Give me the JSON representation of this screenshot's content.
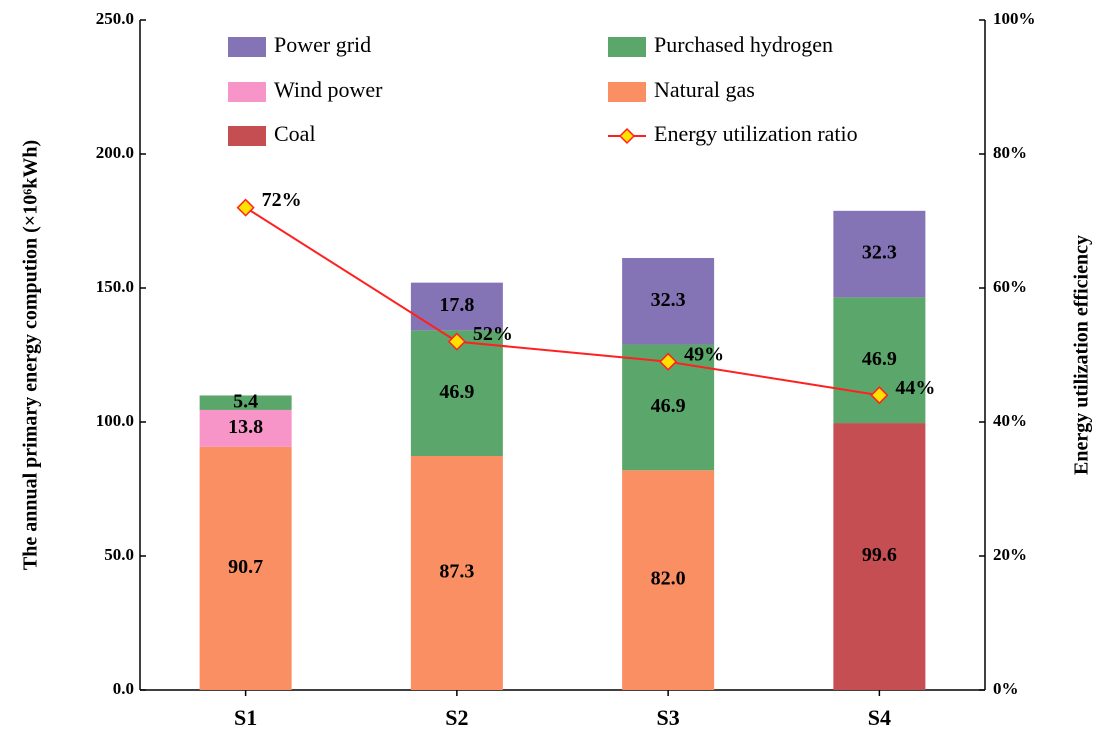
{
  "chart_data": {
    "type": "bar",
    "categories": [
      "S1",
      "S2",
      "S3",
      "S4"
    ],
    "ylabel": "The annual primary energy compution (×10⁶kWh)",
    "y2label": "Energy utilization efficiency",
    "ylim": [
      0,
      250
    ],
    "yticks": [
      {
        "value": 0,
        "label": "0.0"
      },
      {
        "value": 50,
        "label": "50.0"
      },
      {
        "value": 100,
        "label": "100.0"
      },
      {
        "value": 150,
        "label": "150.0"
      },
      {
        "value": 200,
        "label": "200.0"
      },
      {
        "value": 250,
        "label": "250.0"
      }
    ],
    "y2lim": [
      0,
      100
    ],
    "y2ticks": [
      {
        "value": 0,
        "label": "0%"
      },
      {
        "value": 20,
        "label": "20%"
      },
      {
        "value": 40,
        "label": "40%"
      },
      {
        "value": 60,
        "label": "60%"
      },
      {
        "value": 80,
        "label": "80%"
      },
      {
        "value": 100,
        "label": "100%"
      }
    ],
    "series": [
      {
        "name": "Power grid",
        "color": "#8474b6",
        "values": [
          null,
          17.8,
          32.3,
          32.3
        ],
        "value_labels": [
          null,
          "17.8",
          "32.3",
          "32.3"
        ]
      },
      {
        "name": "Purchased hydrogen",
        "color": "#5ba76b",
        "values": [
          5.4,
          46.9,
          46.9,
          46.9
        ],
        "value_labels": [
          "5.4",
          "46.9",
          "46.9",
          "46.9"
        ]
      },
      {
        "name": "Wind power",
        "color": "#f795c8",
        "values": [
          13.8,
          null,
          null,
          null
        ],
        "value_labels": [
          "13.8",
          null,
          null,
          null
        ]
      },
      {
        "name": "Natural gas",
        "color": "#f98f63",
        "values": [
          90.7,
          87.3,
          82.0,
          null
        ],
        "value_labels": [
          "90.7",
          "87.3",
          "82.0",
          null
        ]
      },
      {
        "name": "Coal",
        "color": "#c44e52",
        "values": [
          null,
          null,
          null,
          99.6
        ],
        "value_labels": [
          null,
          null,
          null,
          "99.6"
        ]
      },
      {
        "name": "Energy utilization ratio",
        "type": "line",
        "axis": "y2",
        "color": "#ff2020",
        "marker_color": "#ffe100",
        "values": [
          72,
          52,
          49,
          44
        ],
        "value_labels": [
          "72%",
          "52%",
          "49%",
          "44%"
        ]
      }
    ]
  }
}
